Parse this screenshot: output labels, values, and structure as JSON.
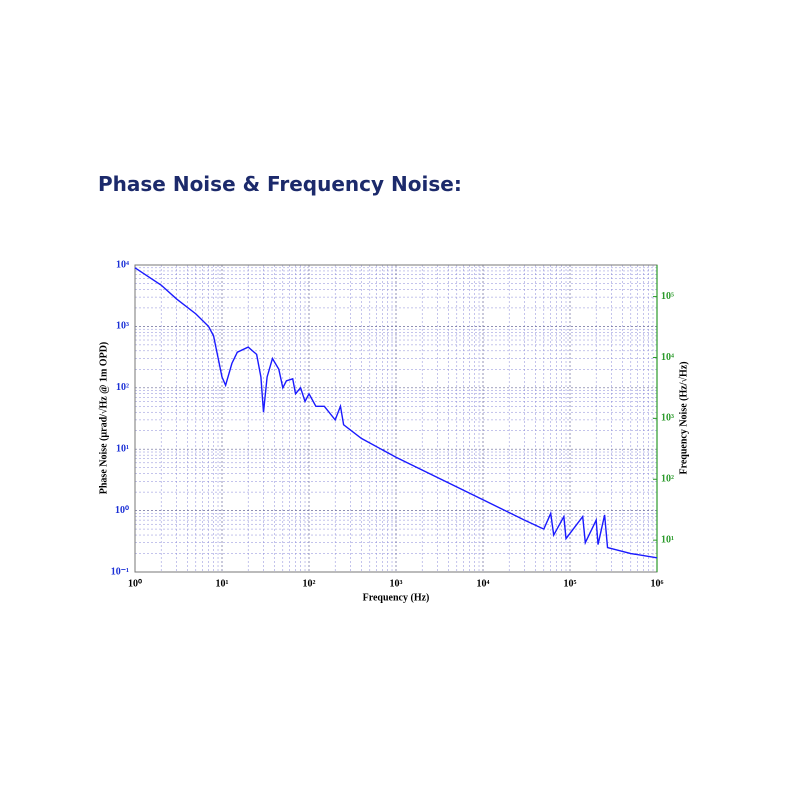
{
  "heading": "Phase Noise & Frequency Noise:",
  "chart_data": {
    "type": "line",
    "xlabel": "Frequency (Hz)",
    "ylabel": "Phase Noise (µrad/√Hz @ 1m OPD)",
    "y2label": "Frequency Noise (Hz/√Hz)",
    "xscale": "log",
    "yscale": "log",
    "grid": true,
    "xlim": [
      1,
      1000000
    ],
    "xticks": [
      {
        "value": 1,
        "label": "10⁰"
      },
      {
        "value": 10,
        "label": "10¹"
      },
      {
        "value": 100,
        "label": "10²"
      },
      {
        "value": 1000,
        "label": "10³"
      },
      {
        "value": 10000,
        "label": "10⁴"
      },
      {
        "value": 100000,
        "label": "10⁵"
      },
      {
        "value": 1000000,
        "label": "10⁶"
      }
    ],
    "ylim": [
      0.1,
      10000
    ],
    "yticks": [
      {
        "value": 0.1,
        "label": "10⁻¹"
      },
      {
        "value": 1,
        "label": "10⁰"
      },
      {
        "value": 10,
        "label": "10¹"
      },
      {
        "value": 100,
        "label": "10²"
      },
      {
        "value": 1000,
        "label": "10³"
      },
      {
        "value": 10000,
        "label": "10⁴"
      }
    ],
    "y2lim": [
      3,
      330000
    ],
    "y2ticks": [
      {
        "value": 10,
        "label": "10¹"
      },
      {
        "value": 100,
        "label": "10²"
      },
      {
        "value": 1000,
        "label": "10³"
      },
      {
        "value": 10000,
        "label": "10⁴"
      },
      {
        "value": 100000,
        "label": "10⁵"
      }
    ],
    "y_color": "#1a2fd6",
    "y2_color": "#2a9a2a",
    "x": [
      1,
      2,
      3,
      5,
      7,
      8,
      10,
      11,
      13,
      15,
      20,
      25,
      28,
      30,
      33,
      38,
      45,
      50,
      55,
      65,
      70,
      80,
      90,
      100,
      120,
      150,
      200,
      230,
      250,
      400,
      1000,
      10000,
      30000,
      50000,
      60000,
      65000,
      85000,
      90000,
      140000,
      150000,
      200000,
      210000,
      250000,
      270000,
      500000,
      1000000
    ],
    "series": [
      {
        "name": "Phase Noise",
        "color": "#1a1aff",
        "values": [
          9000,
          4700,
          2800,
          1600,
          1000,
          700,
          150,
          110,
          250,
          380,
          460,
          350,
          150,
          40,
          150,
          300,
          200,
          100,
          130,
          140,
          80,
          100,
          60,
          80,
          50,
          50,
          30,
          50,
          25,
          15,
          7.4,
          1.5,
          0.7,
          0.5,
          0.9,
          0.4,
          0.8,
          0.35,
          0.8,
          0.3,
          0.7,
          0.28,
          0.85,
          0.25,
          0.2,
          0.17
        ]
      }
    ]
  }
}
